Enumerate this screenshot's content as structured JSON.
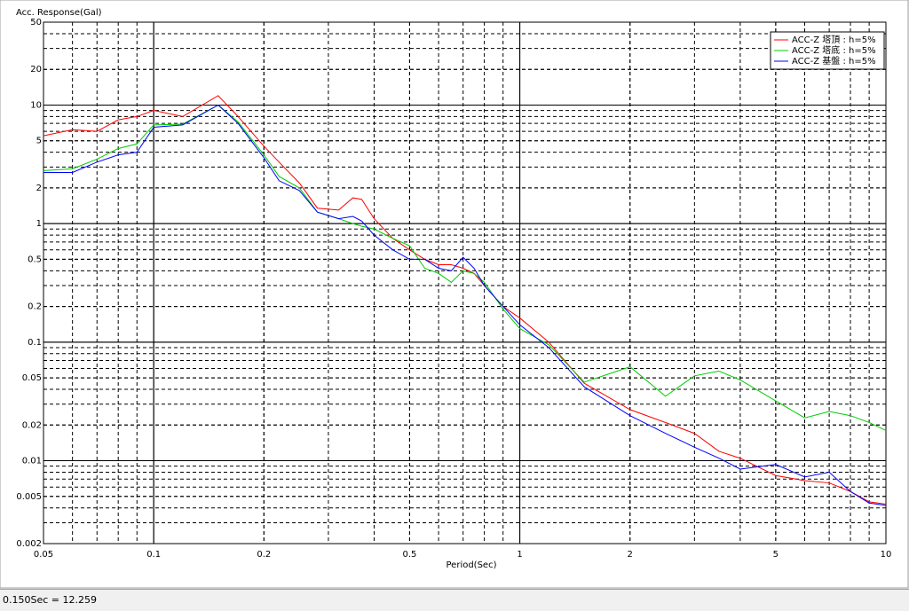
{
  "chart_data": {
    "type": "line",
    "ylabel": "Acc. Response(Gal)",
    "xlabel": "Period(Sec)",
    "log_x": true,
    "log_y": true,
    "grid": true,
    "minor_grid": true,
    "legend": "upper right",
    "xlim": [
      0.05,
      10
    ],
    "ylim": [
      0.002,
      50
    ],
    "xticks": [
      0.05,
      0.1,
      0.2,
      0.5,
      1,
      2,
      5,
      10
    ],
    "yticks": [
      0.002,
      0.005,
      0.01,
      0.02,
      0.05,
      0.1,
      0.2,
      0.5,
      1,
      2,
      5,
      10,
      20,
      50
    ],
    "x": [
      0.05,
      0.06,
      0.07,
      0.08,
      0.09,
      0.1,
      0.12,
      0.15,
      0.17,
      0.2,
      0.22,
      0.25,
      0.28,
      0.32,
      0.35,
      0.37,
      0.4,
      0.45,
      0.5,
      0.55,
      0.6,
      0.65,
      0.7,
      0.75,
      0.8,
      0.9,
      1.0,
      1.2,
      1.5,
      2,
      2.5,
      3,
      3.5,
      4,
      5,
      6,
      7,
      8,
      9,
      10
    ],
    "series": [
      {
        "name": "ACC-Z 塔頂 : h=5%",
        "color": "#ff0000",
        "values": [
          5.5,
          6.2,
          6.0,
          7.5,
          8.0,
          9.0,
          8.0,
          12.0,
          8.0,
          4.5,
          3.3,
          2.2,
          1.35,
          1.3,
          1.65,
          1.6,
          1.1,
          0.75,
          0.6,
          0.5,
          0.45,
          0.45,
          0.42,
          0.38,
          0.3,
          0.2,
          0.16,
          0.1,
          0.045,
          0.027,
          0.021,
          0.017,
          0.012,
          0.0105,
          0.0075,
          0.0068,
          0.0065,
          0.0055,
          0.0045,
          0.0043
        ]
      },
      {
        "name": "ACC-Z 塔底 : h=5%",
        "color": "#00cc00",
        "values": [
          2.8,
          2.9,
          3.5,
          4.3,
          4.7,
          6.8,
          6.9,
          10,
          7.2,
          3.8,
          2.5,
          2.0,
          1.25,
          1.1,
          1.0,
          0.95,
          0.9,
          0.75,
          0.65,
          0.42,
          0.38,
          0.32,
          0.4,
          0.38,
          0.32,
          0.19,
          0.13,
          0.095,
          0.046,
          0.062,
          0.035,
          0.052,
          0.057,
          0.048,
          0.032,
          0.023,
          0.026,
          0.024,
          0.021,
          0.018
        ]
      },
      {
        "name": "ACC-Z 基盤 : h=5%",
        "color": "#0000ff",
        "values": [
          2.7,
          2.7,
          3.3,
          3.8,
          4.0,
          6.5,
          6.8,
          10,
          7.0,
          3.6,
          2.3,
          1.9,
          1.25,
          1.1,
          1.15,
          1.05,
          0.8,
          0.6,
          0.5,
          0.5,
          0.42,
          0.4,
          0.52,
          0.42,
          0.3,
          0.2,
          0.14,
          0.09,
          0.042,
          0.024,
          0.017,
          0.013,
          0.0105,
          0.0085,
          0.0093,
          0.0073,
          0.008,
          0.0055,
          0.0044,
          0.0042
        ]
      }
    ]
  },
  "status_bar": "0.150Sec = 12.259"
}
